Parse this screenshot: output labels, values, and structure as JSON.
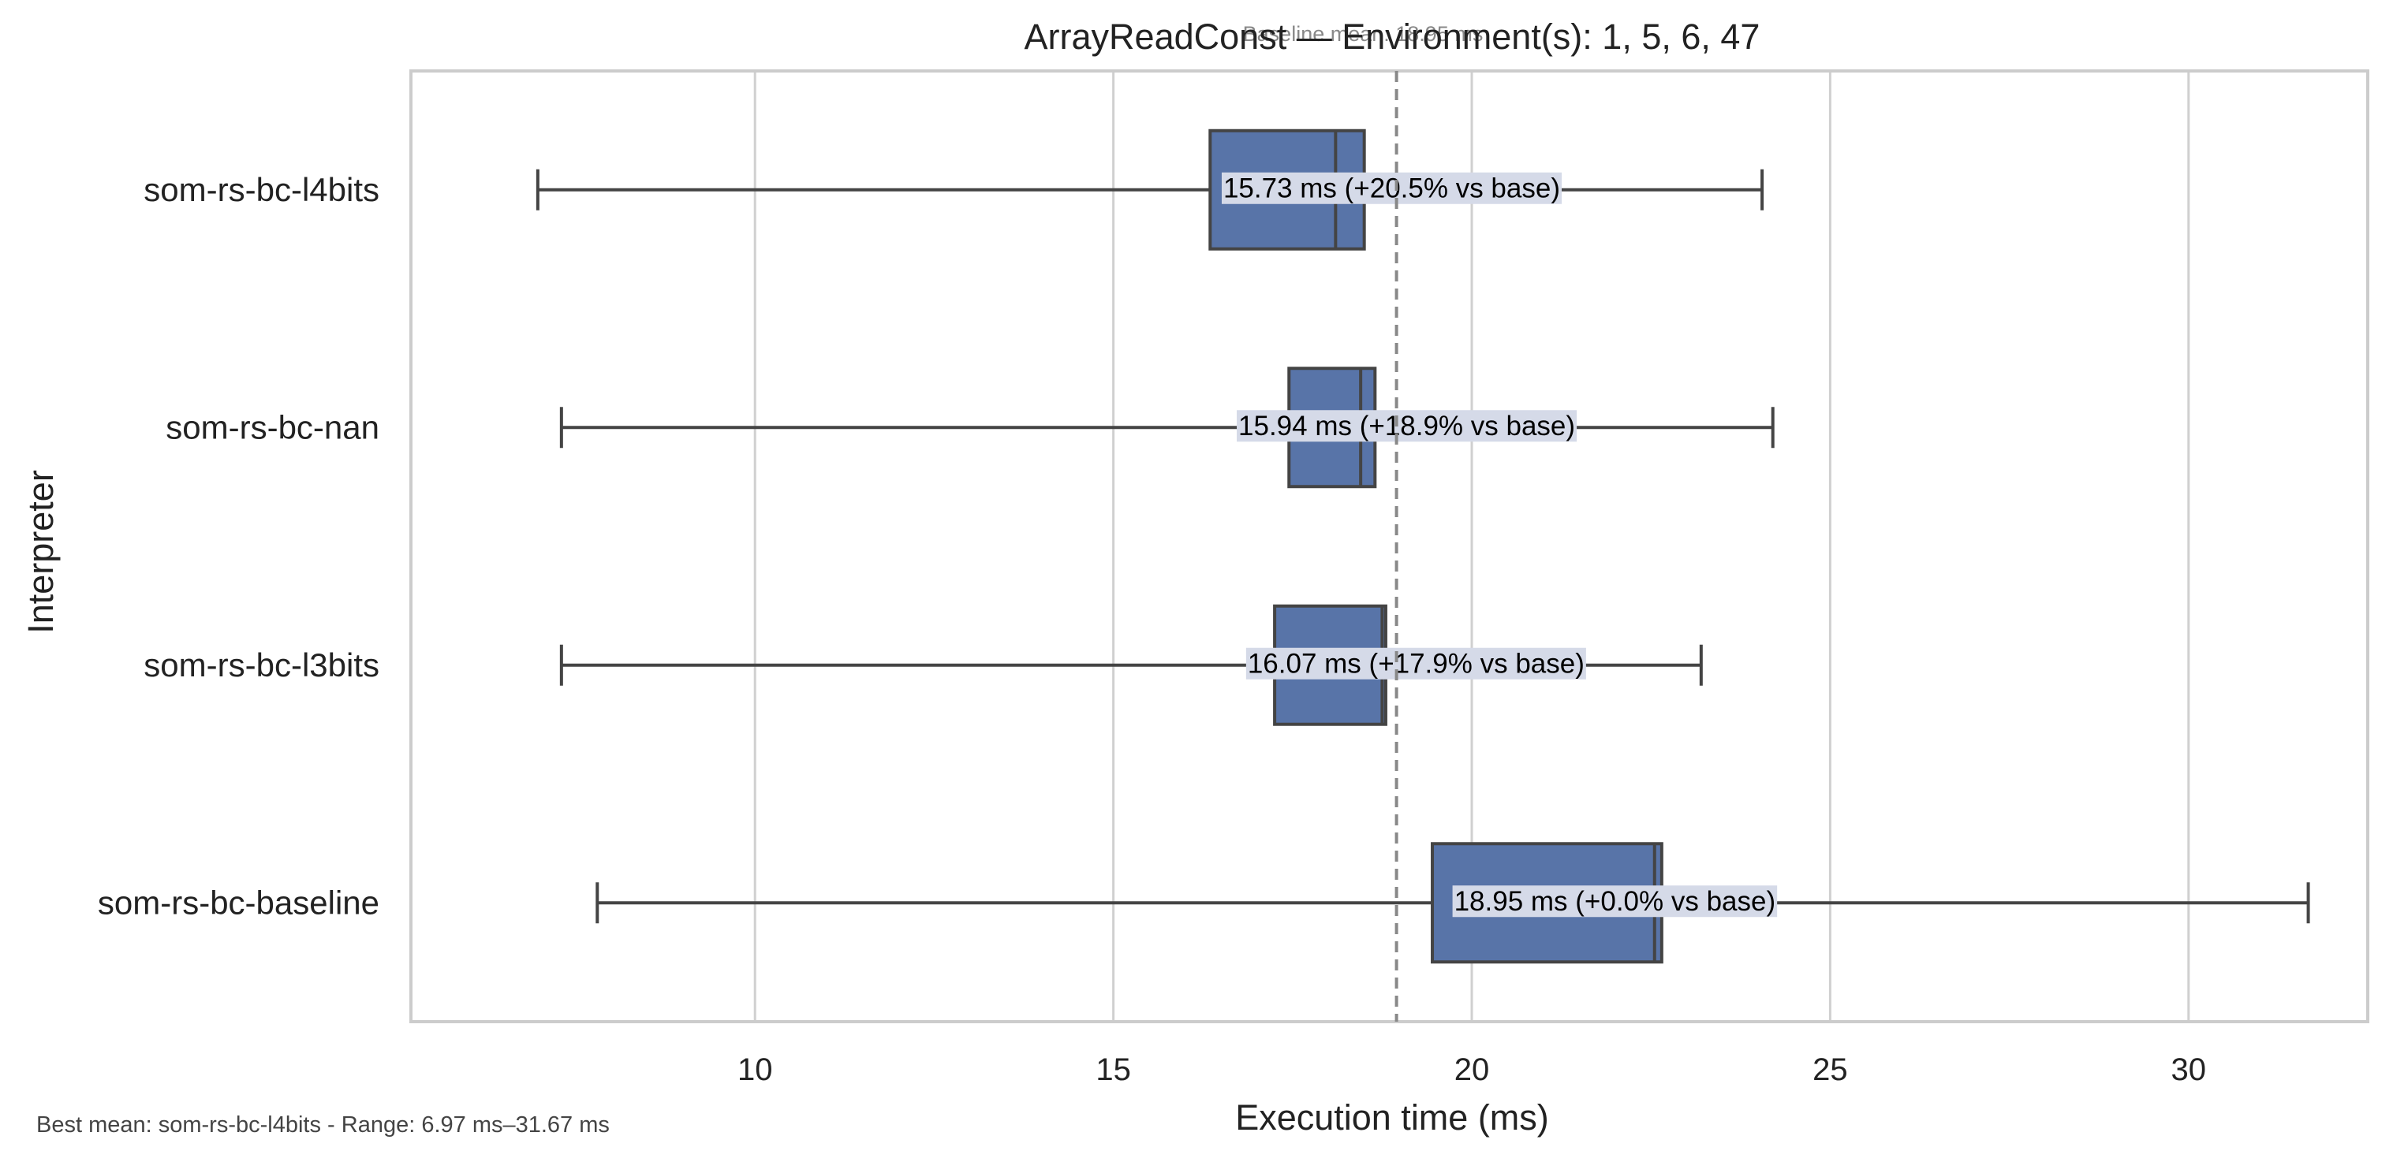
{
  "chart_data": {
    "type": "boxplot",
    "orientation": "horizontal",
    "title": "ArrayReadConst — Environment(s): 1, 5, 6, 47",
    "xlabel": "Execution time (ms)",
    "ylabel": "Interpreter",
    "xlim": [
      5.2,
      32.5
    ],
    "xticks": [
      10,
      15,
      20,
      25,
      30
    ],
    "xtick_labels": [
      "10",
      "15",
      "20",
      "25",
      "30"
    ],
    "grid": "vertical",
    "baseline": {
      "value": 18.95,
      "label": "Baseline mean: 18.95 ms"
    },
    "series": [
      {
        "name": "som-rs-bc-l4bits",
        "whisker_low": 6.97,
        "q1": 16.35,
        "median": 18.1,
        "q3": 18.5,
        "whisker_high": 24.05,
        "mean": 15.73,
        "annotation": "15.73 ms  (+20.5% vs base)"
      },
      {
        "name": "som-rs-bc-nan",
        "whisker_low": 7.3,
        "q1": 17.45,
        "median": 18.45,
        "q3": 18.65,
        "whisker_high": 24.2,
        "mean": 15.94,
        "annotation": "15.94 ms  (+18.9% vs base)"
      },
      {
        "name": "som-rs-bc-l3bits",
        "whisker_low": 7.3,
        "q1": 17.25,
        "median": 18.75,
        "q3": 18.8,
        "whisker_high": 23.2,
        "mean": 16.07,
        "annotation": "16.07 ms  (+17.9% vs base)"
      },
      {
        "name": "som-rs-bc-baseline",
        "whisker_low": 7.8,
        "q1": 19.45,
        "median": 22.55,
        "q3": 22.65,
        "whisker_high": 31.67,
        "mean": 18.95,
        "annotation": "18.95 ms  (+0.0% vs base)"
      }
    ],
    "colors": {
      "box": "#5874a8",
      "edge": "#444444",
      "grid": "#d0d0d0",
      "label_bg": "#d5dae8",
      "baseline": "#888888"
    }
  },
  "footer": "Best mean: som-rs-bc-l4bits - Range: 6.97 ms–31.67 ms"
}
